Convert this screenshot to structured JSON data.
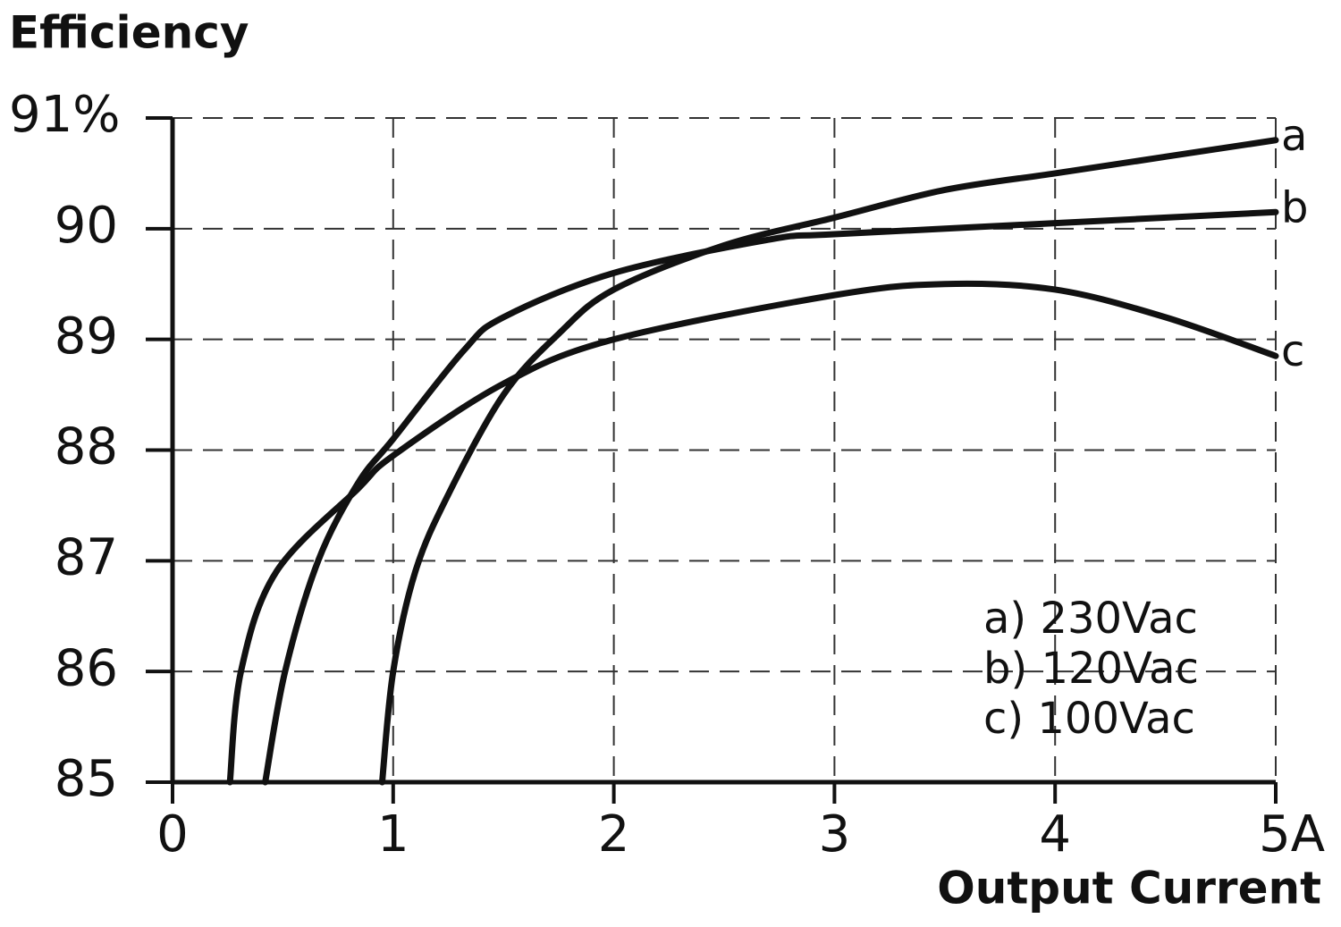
{
  "chart_data": {
    "type": "line",
    "title": "Efficiency",
    "x_label": "Output Current",
    "xlim": [
      0,
      5
    ],
    "xticks": [
      0,
      1,
      2,
      3,
      4,
      {
        "value": 5,
        "label": "5A"
      }
    ],
    "ylim": [
      85,
      91
    ],
    "yticks": [
      85,
      86,
      87,
      88,
      89,
      90,
      {
        "value": 91,
        "label": "91%"
      }
    ],
    "grid": true,
    "legend_position": "lower right",
    "series": [
      {
        "name": "a) 230Vac",
        "label": "a",
        "color": "#111111",
        "x": [
          0.95,
          1.0,
          1.1,
          1.25,
          1.5,
          1.75,
          2.0,
          2.5,
          3.0,
          3.5,
          4.0,
          4.5,
          5.0
        ],
        "values": [
          85,
          86.0,
          86.9,
          87.6,
          88.5,
          89.05,
          89.45,
          89.85,
          90.1,
          90.35,
          90.5,
          90.65,
          90.8
        ]
      },
      {
        "name": "b) 120Vac",
        "label": "b",
        "color": "#111111",
        "x": [
          0.42,
          0.51,
          0.66,
          0.84,
          1.0,
          1.32,
          1.5,
          2.0,
          2.7,
          3.0,
          4.0,
          5.0
        ],
        "values": [
          85,
          86.0,
          87.0,
          87.7,
          88.1,
          88.9,
          89.2,
          89.6,
          89.9,
          89.95,
          90.05,
          90.15
        ]
      },
      {
        "name": "c) 100Vac",
        "label": "c",
        "color": "#111111",
        "x": [
          0.26,
          0.31,
          0.47,
          0.84,
          1.0,
          1.5,
          2.0,
          3.0,
          3.5,
          4.0,
          4.5,
          5.0
        ],
        "values": [
          85,
          86.0,
          86.9,
          87.65,
          87.95,
          88.6,
          89.0,
          89.4,
          89.5,
          89.45,
          89.2,
          88.85
        ]
      }
    ]
  }
}
